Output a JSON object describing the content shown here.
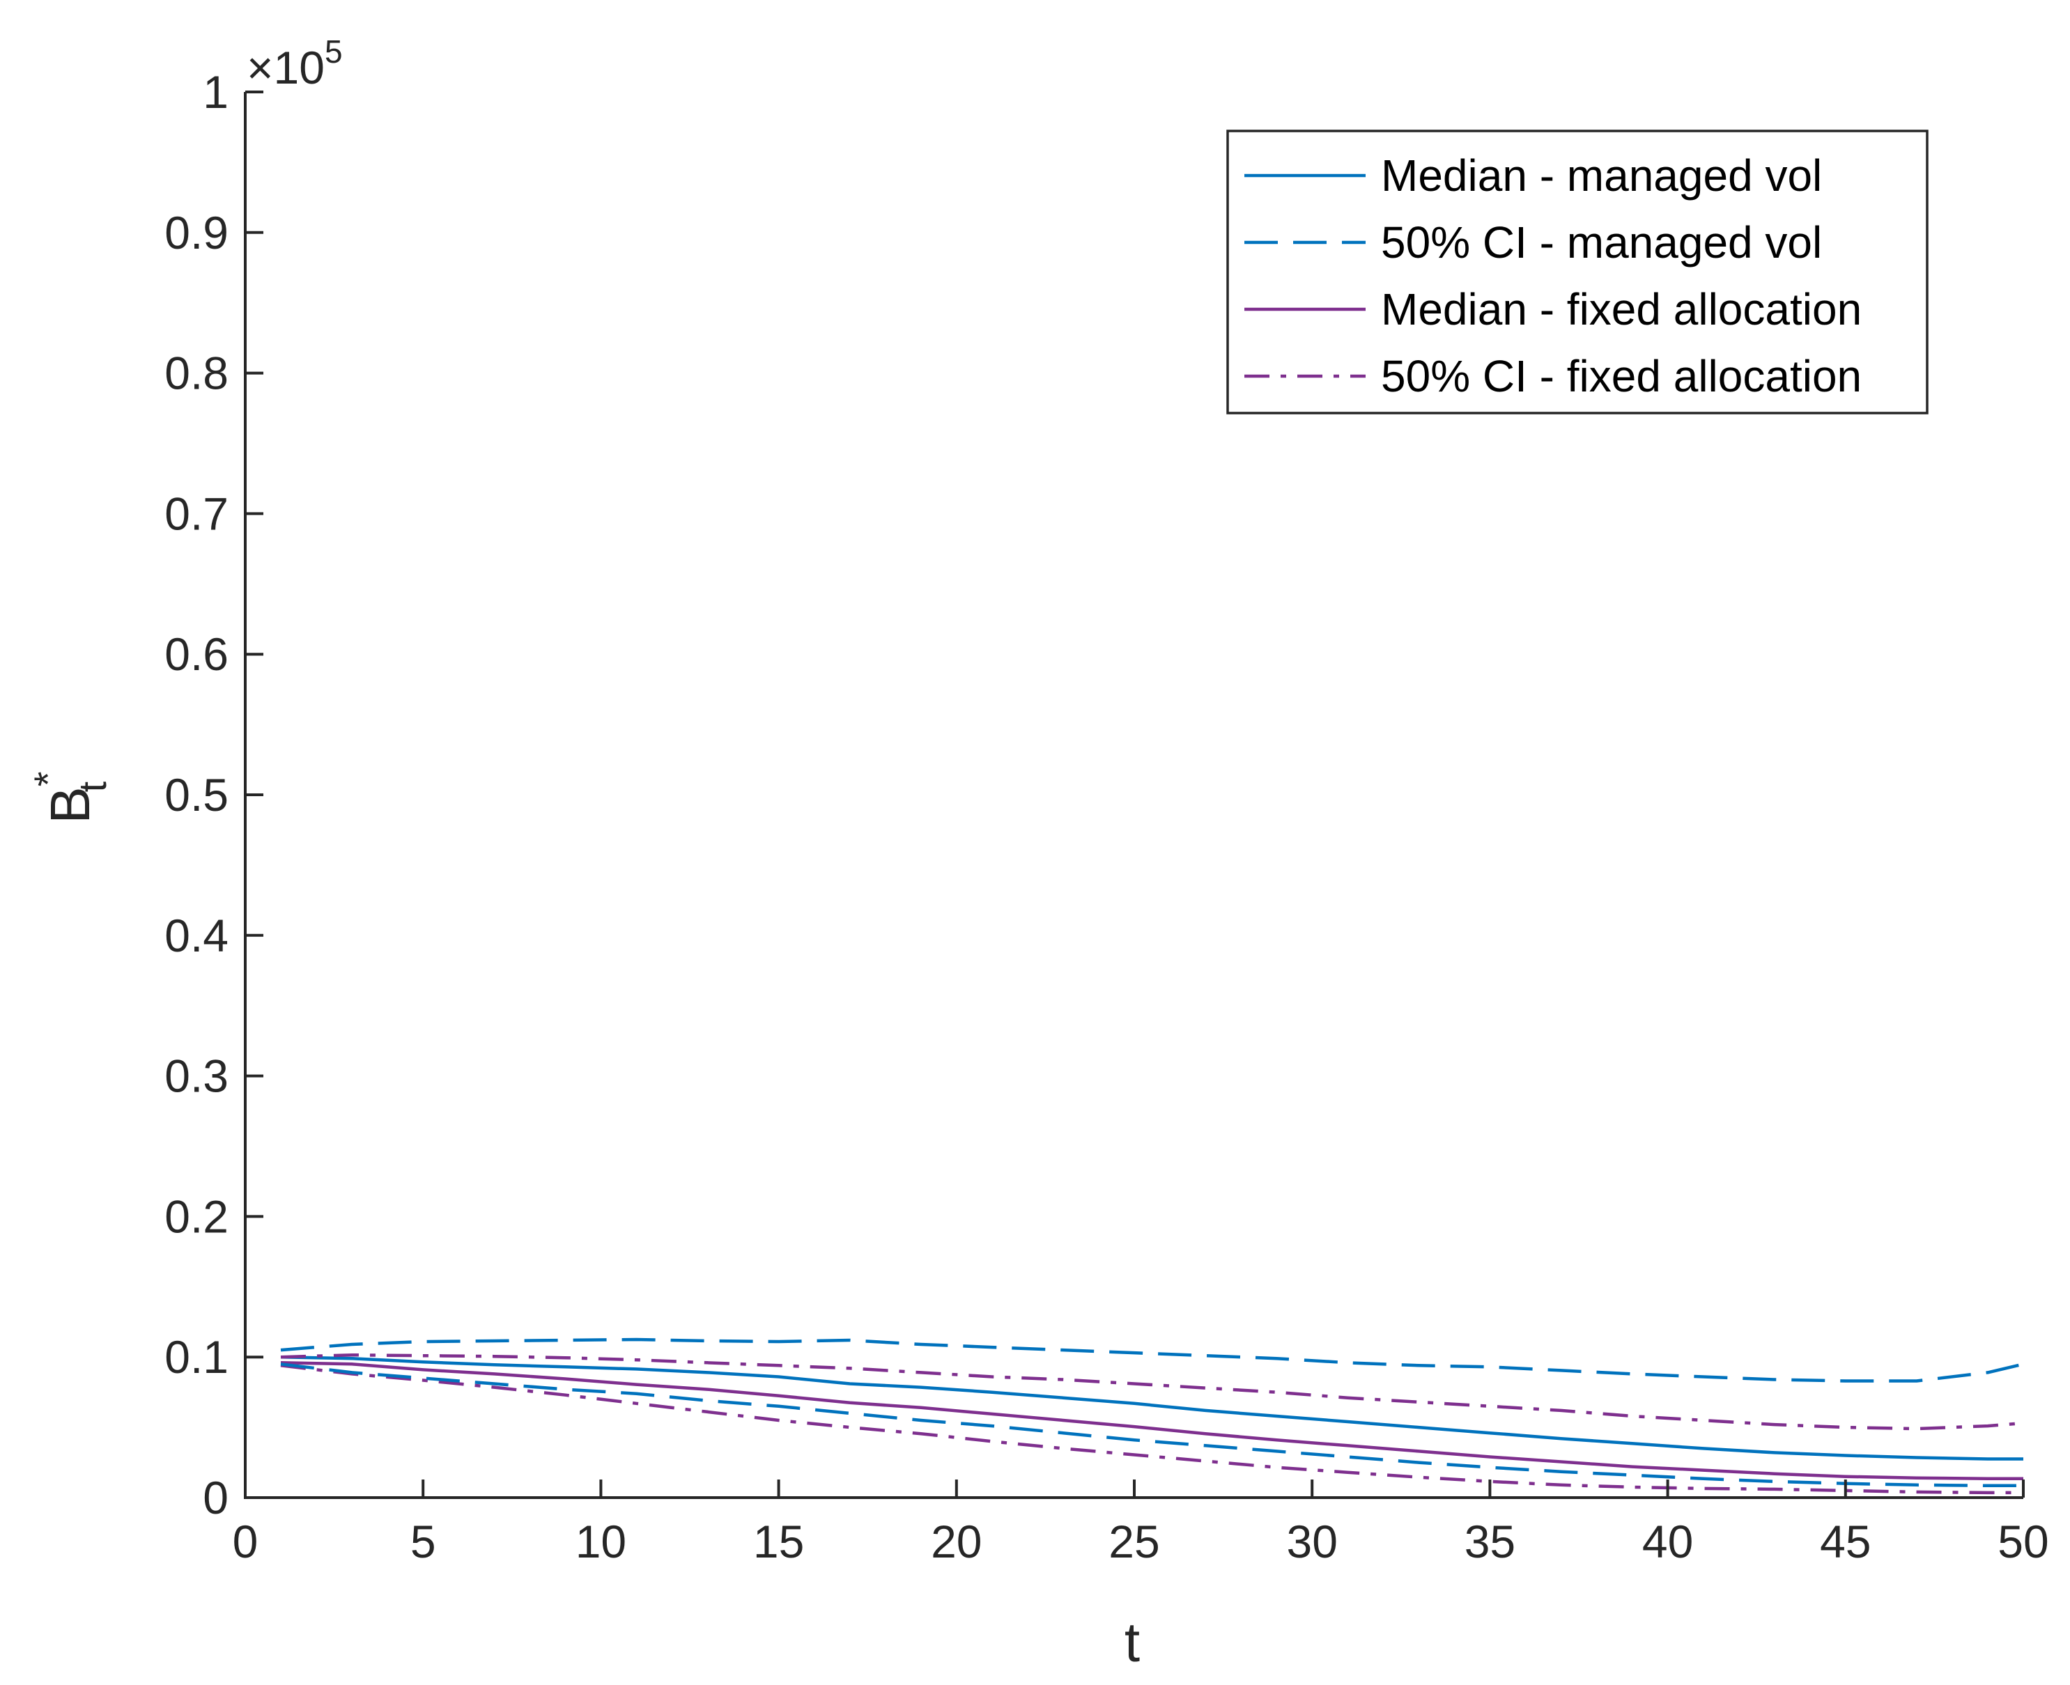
{
  "chart_data": {
    "type": "line",
    "title": "",
    "xlabel": "t",
    "ylabel": {
      "base": "B",
      "superscript": "*",
      "subscript": "t"
    },
    "xlim": [
      0,
      50
    ],
    "ylim": [
      0,
      100000
    ],
    "exponent_label": {
      "prefix": "×10",
      "power": "5"
    },
    "x_ticks": [
      0,
      5,
      10,
      15,
      20,
      25,
      30,
      35,
      40,
      45,
      50
    ],
    "x_tick_labels": [
      "0",
      "5",
      "10",
      "15",
      "20",
      "25",
      "30",
      "35",
      "40",
      "45",
      "50"
    ],
    "y_ticks": [
      0,
      10000,
      20000,
      30000,
      40000,
      50000,
      60000,
      70000,
      80000,
      90000,
      100000
    ],
    "y_tick_labels": [
      "0",
      "0.1",
      "0.2",
      "0.3",
      "0.4",
      "0.5",
      "0.6",
      "0.7",
      "0.8",
      "0.9",
      "1"
    ],
    "grid": false,
    "legend_position": "top-right",
    "x": [
      1,
      3,
      5,
      7,
      9,
      11,
      13,
      15,
      17,
      19,
      21,
      23,
      25,
      27,
      29,
      31,
      33,
      35,
      37,
      39,
      41,
      43,
      45,
      47,
      49,
      50
    ],
    "series": [
      {
        "name": "Median - managed vol",
        "color": "#0072BD",
        "dash": "solid",
        "values": [
          10000,
          9900,
          9650,
          9450,
          9300,
          9150,
          8900,
          8600,
          8100,
          7850,
          7500,
          7100,
          6700,
          6200,
          5800,
          5400,
          5000,
          4600,
          4200,
          3850,
          3500,
          3200,
          3000,
          2850,
          2750,
          2750
        ]
      },
      {
        "name": "50% CI - managed vol",
        "color": "#0072BD",
        "dash": "dashed",
        "values": [
          10500,
          10900,
          11100,
          11150,
          11200,
          11250,
          11150,
          11100,
          11200,
          10900,
          10700,
          10500,
          10300,
          10100,
          9900,
          9600,
          9400,
          9300,
          9050,
          8800,
          8600,
          8400,
          8300,
          8300,
          8900,
          9500
        ]
      },
      {
        "name": "Median - fixed allocation",
        "color": "#7E2F8E",
        "dash": "solid",
        "values": [
          9600,
          9500,
          9100,
          8800,
          8450,
          8050,
          7700,
          7250,
          6750,
          6400,
          5950,
          5500,
          5050,
          4550,
          4100,
          3700,
          3300,
          2900,
          2550,
          2200,
          1950,
          1700,
          1500,
          1400,
          1350,
          1350
        ]
      },
      {
        "name": "50% CI - fixed allocation",
        "color": "#7E2F8E",
        "dash": "dashdot",
        "values": [
          9400,
          8800,
          8350,
          7850,
          7300,
          6700,
          6100,
          5500,
          5000,
          4550,
          4000,
          3500,
          3050,
          2600,
          2150,
          1800,
          1450,
          1150,
          900,
          750,
          650,
          600,
          500,
          400,
          350,
          350
        ]
      },
      {
        "name": "",
        "color": "#7E2F8E",
        "dash": "dashdot",
        "values": [
          10000,
          10150,
          10100,
          10050,
          9950,
          9800,
          9600,
          9400,
          9200,
          8900,
          8600,
          8400,
          8100,
          7800,
          7500,
          7100,
          6800,
          6500,
          6200,
          5800,
          5500,
          5200,
          5000,
          4900,
          5100,
          5300
        ]
      },
      {
        "name": "",
        "color": "#0072BD",
        "dash": "dashed",
        "values": [
          9500,
          8900,
          8500,
          8100,
          7700,
          7400,
          6900,
          6500,
          6000,
          5500,
          5100,
          4600,
          4100,
          3700,
          3300,
          2900,
          2500,
          2150,
          1850,
          1600,
          1350,
          1150,
          1000,
          900,
          850,
          850
        ]
      }
    ]
  }
}
